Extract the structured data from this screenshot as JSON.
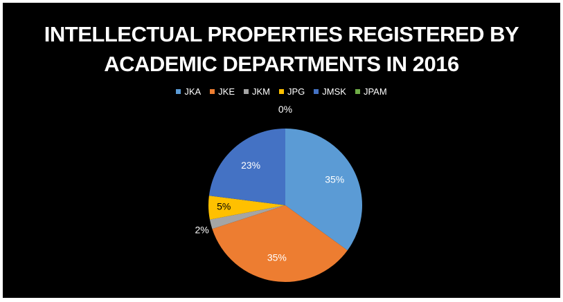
{
  "chart_data": {
    "type": "pie",
    "title_lines": [
      "INTELLECTUAL PROPERTIES REGISTERED BY",
      "ACADEMIC DEPARTMENTS IN 2016"
    ],
    "legend_position": "top",
    "categories": [
      "JKA",
      "JKE",
      "JKM",
      "JPG",
      "JMSK",
      "JPAM"
    ],
    "values": [
      35,
      35,
      2,
      5,
      23,
      0
    ],
    "data_labels": [
      "35%",
      "35%",
      "2%",
      "5%",
      "23%",
      "0%"
    ],
    "colors": [
      "#5b9bd5",
      "#ed7d31",
      "#a5a5a5",
      "#ffc000",
      "#4472c4",
      "#70ad47"
    ]
  }
}
